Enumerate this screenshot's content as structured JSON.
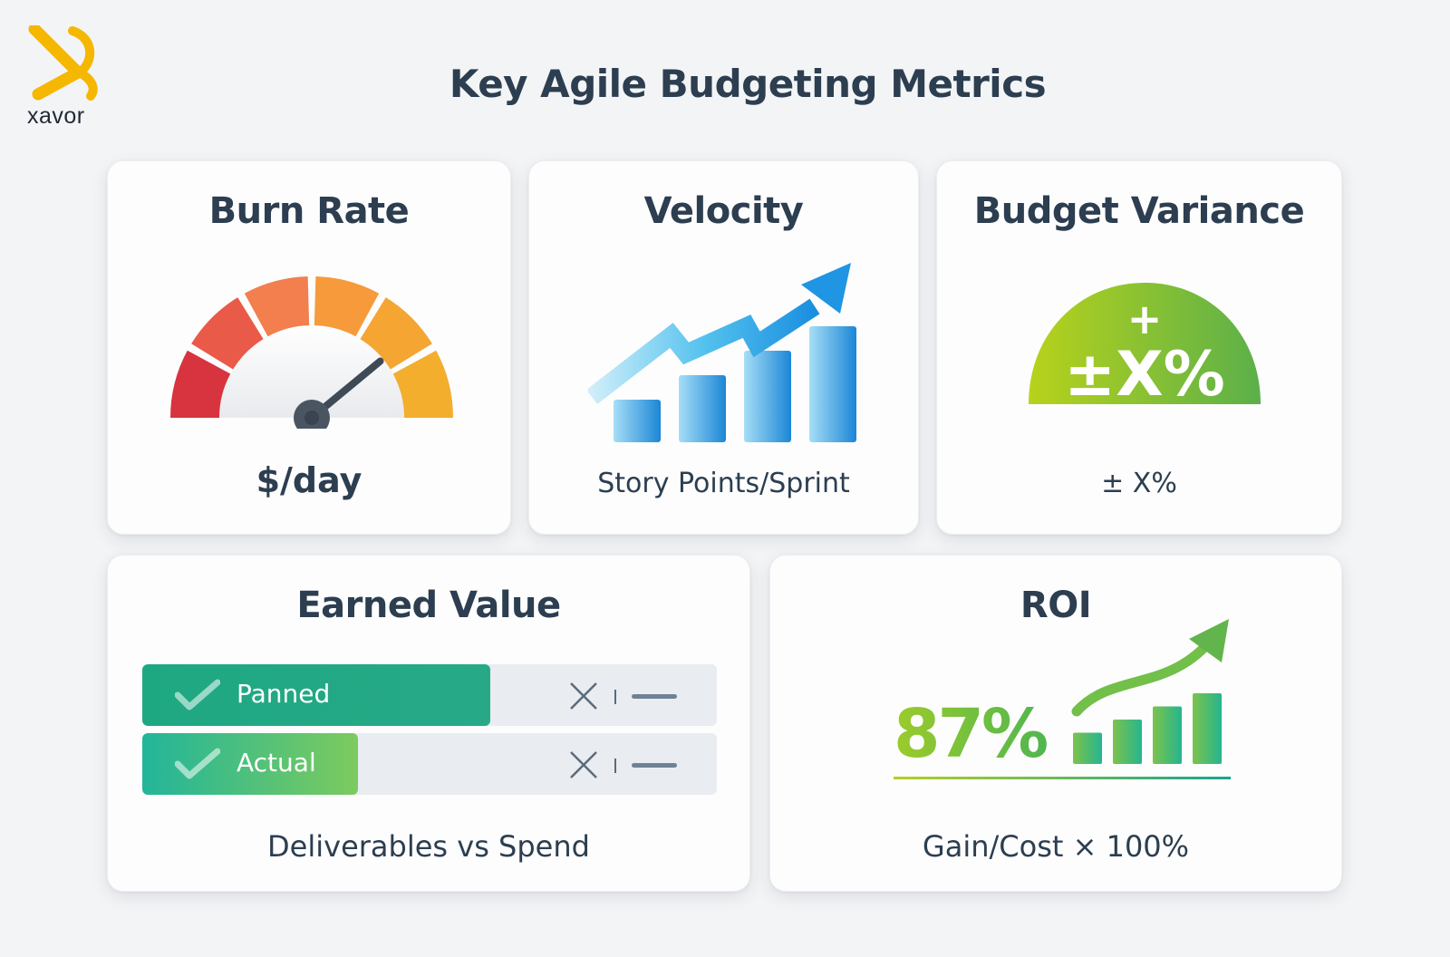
{
  "brand": {
    "name": "xavor",
    "accent": "#f5b700"
  },
  "title": "Key Agile Budgeting Metrics",
  "cards": {
    "burn_rate": {
      "title": "Burn Rate",
      "caption": "$/day",
      "gauge": {
        "level_fraction": 0.78,
        "segment_colors": [
          "#d8343f",
          "#ea5a48",
          "#f27f4d",
          "#f79a3b",
          "#f5a532",
          "#f3ae2e"
        ]
      }
    },
    "velocity": {
      "title": "Velocity",
      "caption": "Story Points/Sprint",
      "bar_levels": [
        1,
        2,
        3,
        4
      ]
    },
    "budget_variance": {
      "title": "Budget Variance",
      "symbol_top": "+",
      "symbol_main": "±X%",
      "caption": "± X%"
    },
    "earned_value": {
      "title": "Earned Value",
      "bars": [
        {
          "label": "Panned",
          "fill_fraction": 0.605
        },
        {
          "label": "Actual",
          "fill_fraction": 0.375
        }
      ],
      "caption": "Deliverables vs Spend"
    },
    "roi": {
      "title": "ROI",
      "value": "87%",
      "bar_levels": [
        1,
        2,
        3,
        4
      ],
      "caption": "Gain/Cost × 100%"
    }
  }
}
